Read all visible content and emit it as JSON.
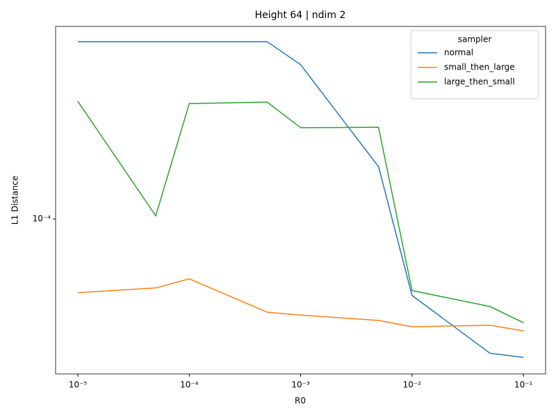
{
  "chart_data": {
    "type": "line",
    "title": "Height 64 | ndim 2",
    "x_label": "R0",
    "y_label": "L1 Distance",
    "x": [
      1e-05,
      5e-05,
      0.0001,
      0.0005,
      0.001,
      0.005,
      0.01,
      0.05,
      0.1
    ],
    "series": [
      {
        "name": "normal",
        "color": "#1f77b4",
        "values": [
          0.000535,
          0.000535,
          0.000535,
          0.000535,
          0.00043,
          0.000164,
          4.85e-05,
          2.81e-05,
          2.7e-05
        ]
      },
      {
        "name": "small_then_large",
        "color": "#ff7f0e",
        "values": [
          4.98e-05,
          5.21e-05,
          5.68e-05,
          4.14e-05,
          4.03e-05,
          3.83e-05,
          3.61e-05,
          3.66e-05,
          3.47e-05
        ]
      },
      {
        "name": "large_then_small",
        "color": "#2ca02c",
        "values": [
          0.000304,
          0.000103,
          0.000298,
          0.000302,
          0.000237,
          0.000238,
          5.08e-05,
          4.37e-05,
          3.75e-05
        ]
      }
    ],
    "x_log": true,
    "y_log": true,
    "xlim": [
      6.31e-06,
      0.158
    ],
    "ylim": [
      2.31e-05,
      0.000618
    ],
    "xticks": [
      {
        "value": 1e-05,
        "label": "10⁻⁵"
      },
      {
        "value": 0.0001,
        "label": "10⁻⁴"
      },
      {
        "value": 0.001,
        "label": "10⁻³"
      },
      {
        "value": 0.01,
        "label": "10⁻²"
      },
      {
        "value": 0.1,
        "label": "10⁻¹"
      }
    ],
    "yticks": [
      {
        "value": 0.0001,
        "label": "10⁻⁴"
      }
    ],
    "legend_title": "sampler",
    "legend_position": "upper-right",
    "grid": false
  }
}
